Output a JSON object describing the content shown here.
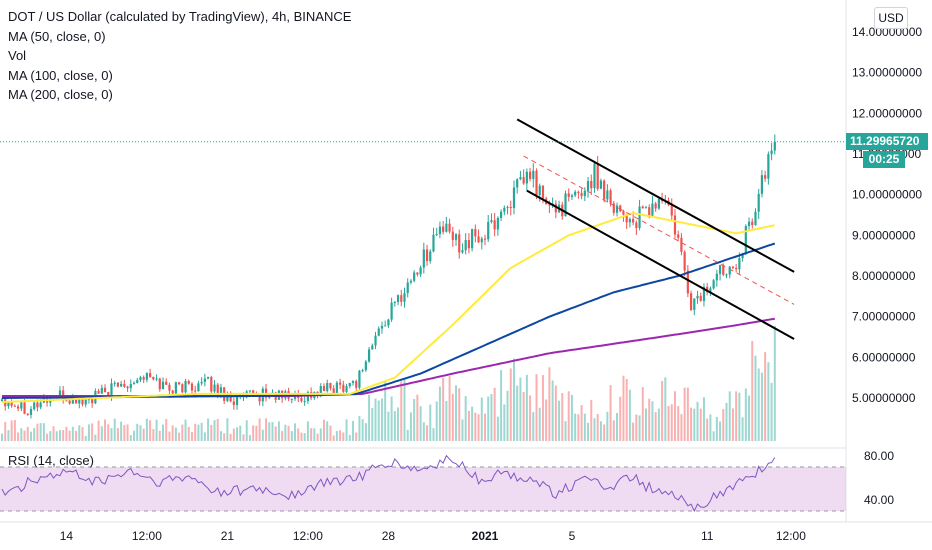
{
  "legend": {
    "title": "DOT / US Dollar (calculated by TradingView), 4h, BINANCE",
    "indicators": [
      "MA (50, close, 0)",
      "Vol",
      "MA (100, close, 0)",
      "MA (200, close, 0)"
    ],
    "rsi": "RSI (14, close)"
  },
  "currency": "USD",
  "last_price": "11.29965720",
  "countdown": "00:25",
  "colors": {
    "up": "#26a69a",
    "down": "#ef5350",
    "ma50": "#ffeb3b",
    "ma100": "#0d47a1",
    "ma200": "#9c27b0",
    "rsi_line": "#7e57c2",
    "rsi_band": "#e1bee7",
    "last_line": "#26a69a"
  },
  "chart_data": {
    "type": "candlestick",
    "symbol": "DOT/USD",
    "interval": "4h",
    "exchange": "BINANCE",
    "ylim": [
      4.2,
      14.3
    ],
    "y_ticks": [
      "14.00000000",
      "13.00000000",
      "12.00000000",
      "11.00000000",
      "10.00000000",
      "9.00000000",
      "8.00000000",
      "7.00000000",
      "6.00000000",
      "5.00000000"
    ],
    "x_ticks": [
      "14",
      "12:00",
      "21",
      "12:00",
      "28",
      "2021",
      "5",
      "11",
      "12:00"
    ],
    "price_anchors": [
      [
        0,
        5.0
      ],
      [
        8,
        4.75
      ],
      [
        16,
        5.05
      ],
      [
        26,
        4.9
      ],
      [
        36,
        5.3
      ],
      [
        44,
        5.55
      ],
      [
        52,
        5.25
      ],
      [
        64,
        5.35
      ],
      [
        72,
        4.95
      ],
      [
        82,
        5.1
      ],
      [
        92,
        5.0
      ],
      [
        100,
        5.2
      ],
      [
        110,
        5.4
      ],
      [
        116,
        6.5
      ],
      [
        122,
        7.3
      ],
      [
        130,
        8.3
      ],
      [
        136,
        9.2
      ],
      [
        142,
        8.8
      ],
      [
        150,
        9.0
      ],
      [
        158,
        9.9
      ],
      [
        164,
        10.5
      ],
      [
        170,
        9.6
      ],
      [
        178,
        9.9
      ],
      [
        184,
        10.5
      ],
      [
        190,
        9.8
      ],
      [
        196,
        9.3
      ],
      [
        202,
        9.7
      ],
      [
        206,
        9.9
      ],
      [
        210,
        8.8
      ],
      [
        214,
        7.3
      ],
      [
        218,
        7.6
      ],
      [
        224,
        8.2
      ],
      [
        228,
        8.4
      ],
      [
        232,
        9.2
      ],
      [
        236,
        10.3
      ],
      [
        240,
        11.3
      ]
    ],
    "ma50_anchors": [
      [
        0,
        4.9
      ],
      [
        60,
        5.1
      ],
      [
        108,
        5.1
      ],
      [
        122,
        5.5
      ],
      [
        140,
        6.8
      ],
      [
        158,
        8.2
      ],
      [
        176,
        9.0
      ],
      [
        196,
        9.55
      ],
      [
        212,
        9.3
      ],
      [
        228,
        9.05
      ],
      [
        240,
        9.25
      ]
    ],
    "ma100_anchors": [
      [
        0,
        5.0
      ],
      [
        80,
        5.05
      ],
      [
        110,
        5.1
      ],
      [
        130,
        5.6
      ],
      [
        150,
        6.3
      ],
      [
        170,
        7.0
      ],
      [
        190,
        7.6
      ],
      [
        210,
        8.0
      ],
      [
        240,
        8.8
      ]
    ],
    "ma200_anchors": [
      [
        0,
        5.05
      ],
      [
        90,
        5.05
      ],
      [
        112,
        5.1
      ],
      [
        140,
        5.6
      ],
      [
        170,
        6.1
      ],
      [
        200,
        6.45
      ],
      [
        225,
        6.75
      ],
      [
        240,
        6.95
      ]
    ],
    "rsi_anchors": [
      [
        0,
        45
      ],
      [
        10,
        58
      ],
      [
        20,
        65
      ],
      [
        30,
        56
      ],
      [
        40,
        66
      ],
      [
        48,
        56
      ],
      [
        58,
        60
      ],
      [
        68,
        47
      ],
      [
        78,
        50
      ],
      [
        90,
        44
      ],
      [
        100,
        55
      ],
      [
        110,
        60
      ],
      [
        120,
        74
      ],
      [
        130,
        66
      ],
      [
        140,
        78
      ],
      [
        148,
        58
      ],
      [
        156,
        64
      ],
      [
        164,
        60
      ],
      [
        172,
        46
      ],
      [
        180,
        58
      ],
      [
        188,
        52
      ],
      [
        196,
        60
      ],
      [
        204,
        46
      ],
      [
        210,
        42
      ],
      [
        214,
        32
      ],
      [
        220,
        40
      ],
      [
        226,
        50
      ],
      [
        232,
        62
      ],
      [
        240,
        77
      ]
    ],
    "rsi_ylim": [
      28,
      86
    ],
    "rsi_bands": [
      70,
      30
    ],
    "rsi_ticks": [
      "80.00",
      "40.00"
    ],
    "channel_lines": [
      {
        "style": "solid",
        "color": "#000000",
        "from": [
          160,
          11.85
        ],
        "to": [
          246,
          8.1
        ]
      },
      {
        "style": "solid",
        "color": "#000000",
        "from": [
          163,
          10.1
        ],
        "to": [
          246,
          6.45
        ]
      },
      {
        "style": "dashed",
        "color": "#ef5350",
        "from": [
          162,
          10.95
        ],
        "to": [
          246,
          7.3
        ]
      }
    ]
  }
}
